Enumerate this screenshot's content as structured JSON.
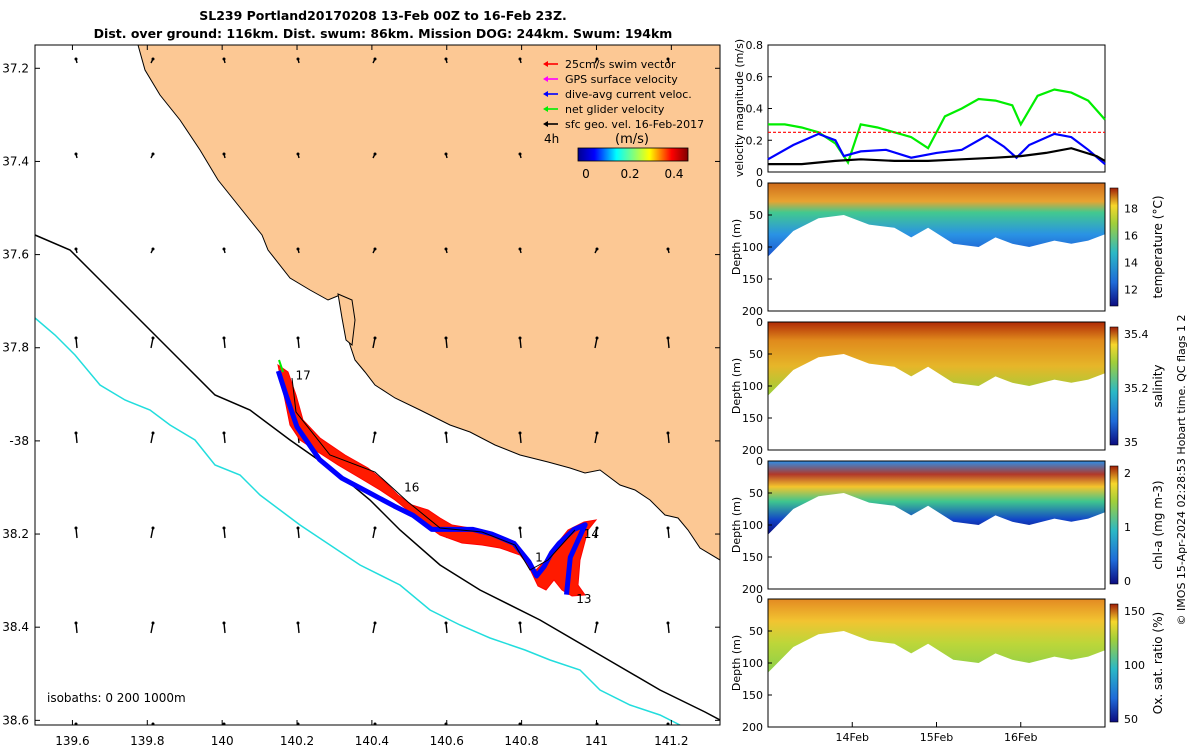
{
  "title": {
    "line1": "SL239 Portland20170208 13-Feb 00Z to 16-Feb 23Z.",
    "line2": "Dist. over ground: 116km. Dist. swum: 86km. Mission DOG: 244km. Swum: 194km"
  },
  "credit": "© IMOS 15-Apr-2024 02:28:53 Hobart time. QC flags 1  2",
  "map": {
    "lon_ticks": [
      "139.6",
      "139.8",
      "140",
      "140.2",
      "140.4",
      "140.6",
      "140.8",
      "141",
      "141.2"
    ],
    "lat_ticks": [
      "37.2",
      "37.4",
      "37.6",
      "37.8",
      "-38",
      "38.2",
      "38.4",
      "38.6"
    ],
    "legend": [
      {
        "label": "25cm/s swim vector",
        "color": "#ff0000"
      },
      {
        "label": "GPS surface velocity",
        "color": "#ff00ff"
      },
      {
        "label": "dive-avg current veloc.",
        "color": "#0000ff"
      },
      {
        "label": "net glider velocity",
        "color": "#00ee00"
      },
      {
        "label": "sfc geo. vel. 16-Feb-2017",
        "color": "#000000"
      }
    ],
    "legend_interval": "4h",
    "colorbar": {
      "label": "(m/s)",
      "ticks": [
        "0",
        "0.2",
        "0.4"
      ]
    },
    "isobaths": "isobaths: 0   200  1000m",
    "day_labels": [
      {
        "label": "17",
        "lon": 140.18,
        "lat": -37.86
      },
      {
        "label": "16",
        "lon": 140.47,
        "lat": -38.1
      },
      {
        "label": "1",
        "lon": 140.82,
        "lat": -38.25
      },
      {
        "label": "14",
        "lon": 140.95,
        "lat": -38.2
      },
      {
        "label": "13",
        "lon": 140.93,
        "lat": -38.34
      }
    ],
    "colors": {
      "land": "#fcc894",
      "isobath_200": "#000000",
      "isobath_1000": "#22dddd",
      "track": "#0000ff",
      "swim": "#ff0000"
    }
  },
  "velocity_panel": {
    "ylabel": "velocity magnitude (m/s)",
    "ylim": [
      0,
      0.8
    ],
    "yticks": [
      "0",
      "0.2",
      "0.4",
      "0.6",
      "0.8"
    ]
  },
  "sections": [
    {
      "name": "temperature",
      "cbar_label": "temperature (°C)",
      "cbar_ticks": [
        "12",
        "14",
        "16",
        "18"
      ],
      "ylabel": "Depth (m)",
      "yticks": [
        "0",
        "50",
        "100",
        "150",
        "200"
      ]
    },
    {
      "name": "salinity",
      "cbar_label": "salinity",
      "cbar_ticks": [
        "35",
        "35.2",
        "35.4"
      ],
      "ylabel": "Depth (m)",
      "yticks": [
        "0",
        "50",
        "100",
        "150",
        "200"
      ]
    },
    {
      "name": "chla",
      "cbar_label": "chl-a (mg m-3)",
      "cbar_ticks": [
        "0",
        "1",
        "2"
      ],
      "ylabel": "Depth (m)",
      "yticks": [
        "0",
        "50",
        "100",
        "150",
        "200"
      ]
    },
    {
      "name": "oxygen",
      "cbar_label": "Ox. sat. ratio (%)",
      "cbar_ticks": [
        "50",
        "100",
        "150"
      ],
      "ylabel": "Depth (m)",
      "yticks": [
        "0",
        "50",
        "100",
        "150",
        "200"
      ]
    }
  ],
  "time_ticks": [
    "14Feb",
    "15Feb",
    "16Feb"
  ],
  "chart_data": [
    {
      "type": "scatter",
      "panel": "map",
      "xlim": [
        139.5,
        141.33
      ],
      "ylim": [
        -38.61,
        -37.15
      ],
      "track": {
        "lon": [
          140.15,
          140.17,
          140.2,
          140.26,
          140.32,
          140.39,
          140.46,
          140.51,
          140.56,
          140.62,
          140.67,
          140.72,
          140.78,
          140.82,
          140.84,
          140.86,
          140.88,
          140.9,
          140.94,
          140.97,
          140.93,
          140.92
        ],
        "lat": [
          -37.85,
          -37.9,
          -37.97,
          -38.04,
          -38.08,
          -38.11,
          -38.14,
          -38.16,
          -38.19,
          -38.19,
          -38.19,
          -38.2,
          -38.22,
          -38.26,
          -38.29,
          -38.27,
          -38.24,
          -38.22,
          -38.19,
          -38.18,
          -38.25,
          -38.33
        ]
      }
    },
    {
      "type": "line",
      "panel": "velocity",
      "series": [
        {
          "name": "net glider velocity",
          "color": "#00ee00",
          "t": [
            13.0,
            13.2,
            13.4,
            13.6,
            13.8,
            13.95,
            14.1,
            14.3,
            14.5,
            14.7,
            14.9,
            15.1,
            15.3,
            15.5,
            15.7,
            15.9,
            16.0,
            16.2,
            16.4,
            16.6,
            16.8,
            17.0
          ],
          "v": [
            0.3,
            0.3,
            0.28,
            0.25,
            0.18,
            0.06,
            0.3,
            0.28,
            0.25,
            0.22,
            0.15,
            0.35,
            0.4,
            0.46,
            0.45,
            0.42,
            0.3,
            0.48,
            0.52,
            0.5,
            0.45,
            0.33
          ]
        },
        {
          "name": "dive-avg current veloc.",
          "color": "#0000ff",
          "t": [
            13.0,
            13.3,
            13.6,
            13.8,
            13.9,
            14.1,
            14.4,
            14.7,
            15.0,
            15.3,
            15.6,
            15.8,
            15.95,
            16.1,
            16.4,
            16.6,
            16.8,
            17.0
          ],
          "v": [
            0.08,
            0.17,
            0.24,
            0.2,
            0.1,
            0.13,
            0.14,
            0.09,
            0.12,
            0.14,
            0.23,
            0.16,
            0.09,
            0.17,
            0.24,
            0.22,
            0.14,
            0.05
          ]
        },
        {
          "name": "GPS surface velocity",
          "color": "#ff0000",
          "t": [
            13.0,
            17.0
          ],
          "v": [
            0.25,
            0.25
          ]
        },
        {
          "name": "sfc geo. vel.",
          "color": "#000000",
          "t": [
            13.0,
            13.4,
            13.8,
            14.1,
            14.5,
            14.9,
            15.3,
            15.7,
            16.0,
            16.3,
            16.6,
            16.9,
            17.0
          ],
          "v": [
            0.05,
            0.05,
            0.07,
            0.08,
            0.07,
            0.07,
            0.08,
            0.09,
            0.1,
            0.12,
            0.15,
            0.1,
            0.07
          ]
        }
      ]
    }
  ]
}
